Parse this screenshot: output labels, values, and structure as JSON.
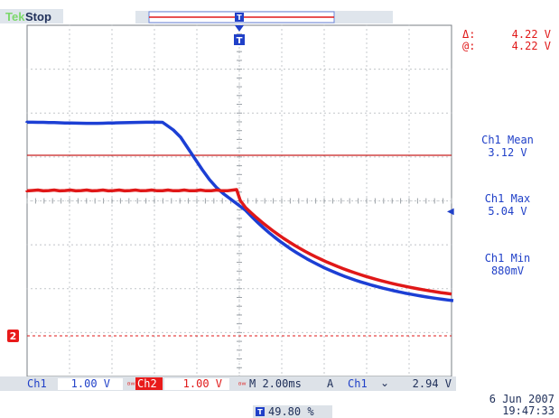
{
  "status": {
    "mode": "Tek",
    "state": "Stop"
  },
  "colors": {
    "ch1": "#1c3fd4",
    "ch2": "#e01818",
    "grid": "#9aa0a6",
    "ref_line": "#c81e1e",
    "text": "#2040c8",
    "trigger_green": "#7cd86b",
    "bottom_bar": "#dde2e8",
    "ch2_tag_bg": "#e81a1a"
  },
  "cursor_readout": {
    "delta_label": "Δ:",
    "delta_value": "4.22 V",
    "at_label": "@:",
    "at_value": "4.22 V"
  },
  "measurements": [
    {
      "label": "Ch1 Mean",
      "value": "3.12 V"
    },
    {
      "label": "Ch1 Max",
      "value": "5.04 V"
    },
    {
      "label": "Ch1 Min",
      "value": "880mV"
    }
  ],
  "bottom_bar": {
    "ch1_label": "Ch1",
    "ch1_scale": "1.00 V",
    "ch2_label": "Ch2",
    "ch2_scale": "1.00 V",
    "timebase": "M 2.00ms",
    "trigger_mode": "A",
    "trigger_source": "Ch1",
    "trigger_slope": "⌄",
    "trigger_level": "2.94 V"
  },
  "trigger_position": "49.80 %",
  "date": "6 Jun  2007",
  "time": "19:47:33",
  "markers": {
    "ch2_marker": "2",
    "trigger_marker": "T",
    "level_arrow": "◀"
  },
  "waveforms": {
    "ch1_blue": "high plateau then smooth decay",
    "ch2_red": "flat plateau then decay"
  }
}
